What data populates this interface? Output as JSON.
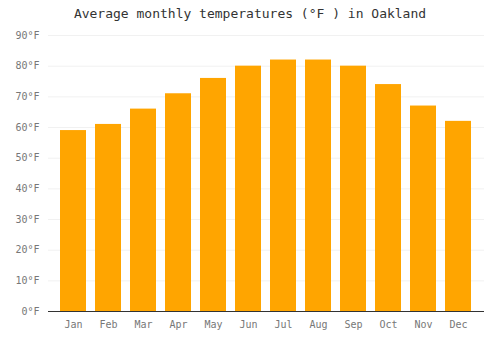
{
  "chart_data": {
    "type": "bar",
    "title": "Average monthly temperatures (°F ) in Oakland",
    "categories": [
      "Jan",
      "Feb",
      "Mar",
      "Apr",
      "May",
      "Jun",
      "Jul",
      "Aug",
      "Sep",
      "Oct",
      "Nov",
      "Dec"
    ],
    "values": [
      59,
      61,
      66,
      71,
      76,
      80,
      82,
      82,
      80,
      74,
      67,
      62
    ],
    "color": "#FFA500",
    "ylim": [
      0,
      90
    ],
    "yticks": [
      {
        "value": 0,
        "label": "0°F"
      },
      {
        "value": 10,
        "label": "10°F"
      },
      {
        "value": 20,
        "label": "20°F"
      },
      {
        "value": 30,
        "label": "30°F"
      },
      {
        "value": 40,
        "label": "40°F"
      },
      {
        "value": 50,
        "label": "50°F"
      },
      {
        "value": 60,
        "label": "60°F"
      },
      {
        "value": 70,
        "label": "70°F"
      },
      {
        "value": 80,
        "label": "80°F"
      },
      {
        "value": 90,
        "label": "90°F"
      }
    ],
    "grid": true
  }
}
